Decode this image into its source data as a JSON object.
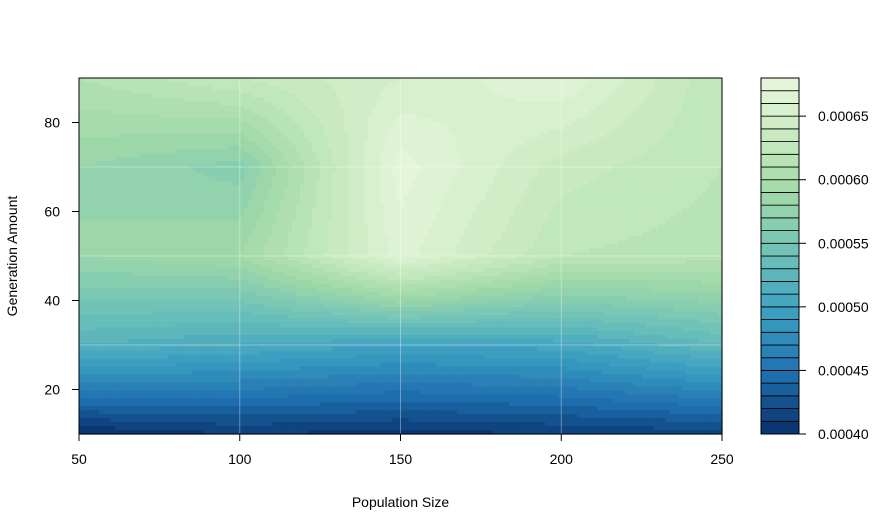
{
  "chart_data": {
    "type": "heatmap",
    "subtype": "filled-contour",
    "title": "",
    "xlabel": "Population Size",
    "ylabel": "Generation Amount",
    "x": [
      50,
      100,
      150,
      200,
      250
    ],
    "y": [
      10,
      30,
      50,
      70,
      90
    ],
    "xlim": [
      50,
      250
    ],
    "ylim": [
      10,
      90
    ],
    "x_ticks": [
      "50",
      "100",
      "150",
      "200",
      "250"
    ],
    "y_ticks": [
      "20",
      "40",
      "60",
      "80"
    ],
    "y_tick_values": [
      20,
      40,
      60,
      80
    ],
    "z_grid": [
      [
        0.0004,
        0.00041,
        0.000405,
        0.00041,
        0.000415
      ],
      [
        0.00052,
        0.00051,
        0.0005,
        0.000505,
        0.00053
      ],
      [
        0.00058,
        0.00059,
        0.000665,
        0.00062,
        0.000615
      ],
      [
        0.00058,
        0.000565,
        0.000675,
        0.000635,
        0.00062
      ],
      [
        0.00061,
        0.00063,
        0.00065,
        0.00067,
        0.00062
      ]
    ],
    "z_range": [
      0.0004,
      0.00068
    ],
    "levels": 28,
    "colorbar": {
      "ticks": [
        "0.00040",
        "0.00045",
        "0.00050",
        "0.00055",
        "0.00060",
        "0.00065"
      ],
      "tick_values": [
        0.0004,
        0.00045,
        0.0005,
        0.00055,
        0.0006,
        0.00065
      ],
      "low_color": "#08306b",
      "high_color": "#e8f6dd",
      "placement": "right"
    },
    "grid": true,
    "colors": [
      "#08306b",
      "#1f6fae",
      "#3a9ec2",
      "#6cc1b9",
      "#9fd8a8",
      "#c8eac0",
      "#e8f6dd"
    ]
  }
}
